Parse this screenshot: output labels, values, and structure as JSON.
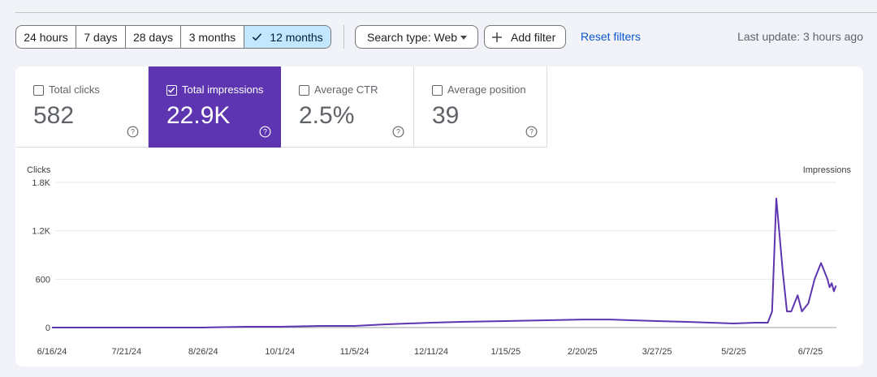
{
  "toolbar": {
    "ranges": [
      {
        "label": "24 hours",
        "active": false
      },
      {
        "label": "7 days",
        "active": false
      },
      {
        "label": "28 days",
        "active": false
      },
      {
        "label": "3 months",
        "active": false
      },
      {
        "label": "12 months",
        "active": true
      }
    ],
    "search_type_label": "Search type: Web",
    "add_filter_label": "Add filter",
    "reset_filters_label": "Reset filters",
    "last_update": "Last update: 3 hours ago"
  },
  "metrics": [
    {
      "label": "Total clicks",
      "value": "582",
      "checked": false
    },
    {
      "label": "Total impressions",
      "value": "22.9K",
      "checked": true
    },
    {
      "label": "Average CTR",
      "value": "2.5%",
      "checked": false
    },
    {
      "label": "Average position",
      "value": "39",
      "checked": false
    }
  ],
  "colors": {
    "accent": "#5e35b1",
    "line": "#5e35b1",
    "link": "#0b57d0",
    "active_range_bg": "#c2e7ff"
  },
  "icons": {
    "check": "check-icon",
    "dropdown": "caret-down-icon",
    "add": "plus-icon",
    "help": "help-circle-icon",
    "checkbox": "checkbox-icon"
  },
  "chart_data": {
    "type": "line",
    "left_axis_label": "Clicks",
    "right_axis_label": "Impressions",
    "y_ticks": [
      "1.8K",
      "1.2K",
      "600",
      "0"
    ],
    "ylim": [
      0,
      1800
    ],
    "x_ticks": [
      "6/16/24",
      "7/21/24",
      "8/26/24",
      "10/1/24",
      "11/5/24",
      "12/11/24",
      "1/15/25",
      "2/20/25",
      "3/27/25",
      "5/2/25",
      "6/7/25"
    ],
    "grid": true,
    "series": [
      {
        "name": "Impressions",
        "x": [
          "6/16/24",
          "7/1/24",
          "7/21/24",
          "8/10/24",
          "8/26/24",
          "9/15/24",
          "10/1/24",
          "10/20/24",
          "11/5/24",
          "11/20/24",
          "12/11/24",
          "12/25/24",
          "1/15/25",
          "2/1/25",
          "2/20/25",
          "3/5/25",
          "3/27/25",
          "4/10/25",
          "5/2/25",
          "5/12/25",
          "5/18/25",
          "5/20/25",
          "5/22/25",
          "5/25/25",
          "5/27/25",
          "5/29/25",
          "6/1/25",
          "6/3/25",
          "6/6/25",
          "6/9/25",
          "6/12/25",
          "6/15/25",
          "6/16/25",
          "6/17/25",
          "6/18/25",
          "6/19/25"
        ],
        "values": [
          0,
          0,
          0,
          0,
          0,
          10,
          10,
          20,
          20,
          40,
          60,
          70,
          80,
          90,
          100,
          100,
          80,
          70,
          50,
          60,
          60,
          200,
          1600,
          700,
          200,
          200,
          400,
          200,
          300,
          600,
          800,
          600,
          500,
          550,
          450,
          520
        ]
      }
    ]
  }
}
